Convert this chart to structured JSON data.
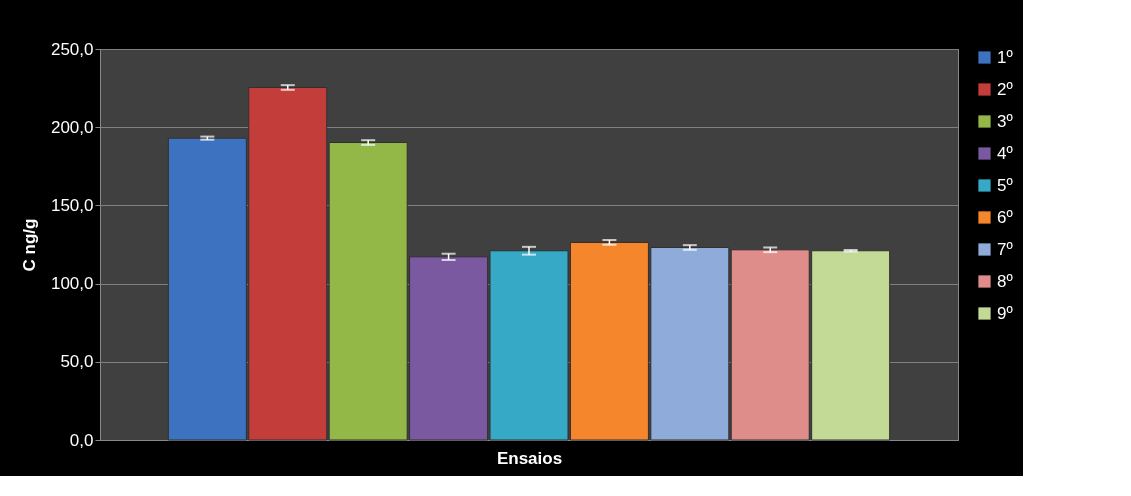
{
  "chart_data": {
    "type": "bar",
    "xlabel": "Ensaios",
    "ylabel": "C ng/g",
    "categories": [
      null
    ],
    "series": [
      {
        "name": "1º",
        "color": "#3c72bf",
        "values": [
          193.0
        ],
        "errors": [
          1.0
        ]
      },
      {
        "name": "2º",
        "color": "#c33d3a",
        "values": [
          225.4
        ],
        "errors": [
          1.5
        ]
      },
      {
        "name": "3º",
        "color": "#94b848",
        "values": [
          190.2
        ],
        "errors": [
          1.5
        ]
      },
      {
        "name": "4º",
        "color": "#7b59a0",
        "values": [
          117.1
        ],
        "errors": [
          2.0
        ]
      },
      {
        "name": "5º",
        "color": "#35a9c6",
        "values": [
          121.0
        ],
        "errors": [
          2.5
        ]
      },
      {
        "name": "6º",
        "color": "#f5862c",
        "values": [
          126.3
        ],
        "errors": [
          1.5
        ]
      },
      {
        "name": "7º",
        "color": "#8fabd9",
        "values": [
          123.1
        ],
        "errors": [
          1.5
        ]
      },
      {
        "name": "8º",
        "color": "#df8d8b",
        "values": [
          121.6
        ],
        "errors": [
          1.5
        ]
      },
      {
        "name": "9º",
        "color": "#c2da95",
        "values": [
          121.0
        ],
        "errors": [
          0.5
        ]
      }
    ],
    "ylim": [
      0,
      250
    ],
    "yticks": [
      {
        "value": 0,
        "label": "0,0"
      },
      {
        "value": 50,
        "label": "50,0"
      },
      {
        "value": 100,
        "label": "100,0"
      },
      {
        "value": 150,
        "label": "150,0"
      },
      {
        "value": 200,
        "label": "200,0"
      },
      {
        "value": 250,
        "label": "250,0"
      }
    ],
    "grid": "y",
    "legend": "right"
  }
}
